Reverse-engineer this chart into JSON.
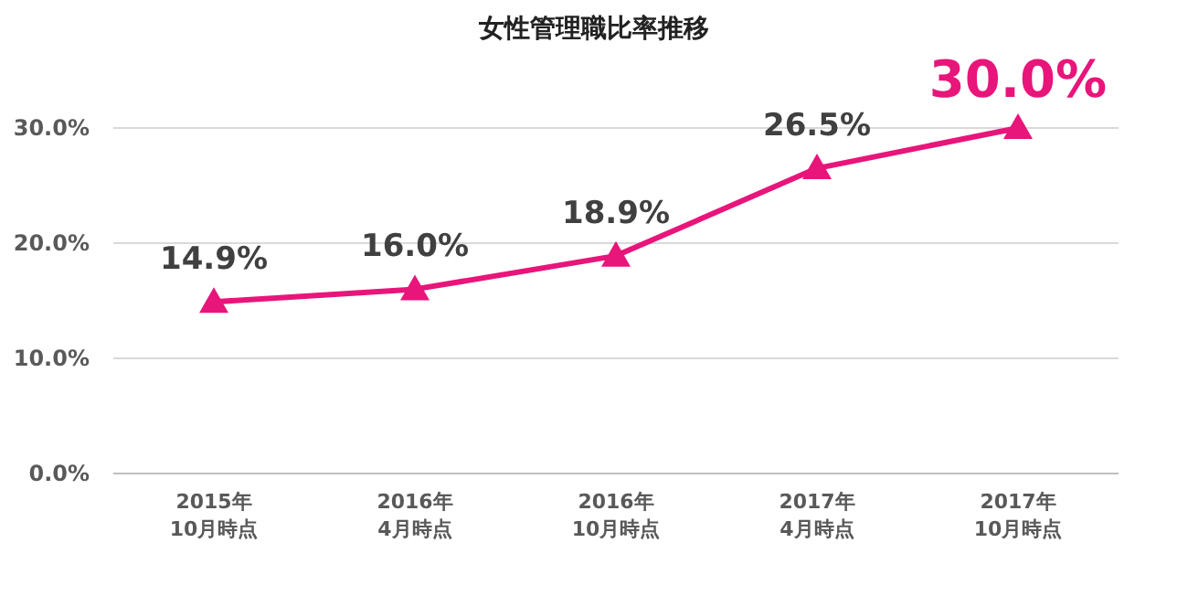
{
  "chart_data": {
    "type": "line",
    "title": "女性管理職比率推移",
    "categories": [
      "2015年\n10月時点",
      "2016年\n4月時点",
      "2016年\n10月時点",
      "2017年\n4月時点",
      "2017年\n10月時点"
    ],
    "values": [
      14.9,
      16.0,
      18.9,
      26.5,
      30.0
    ],
    "value_labels": [
      "14.9%",
      "16.0%",
      "18.9%",
      "26.5%",
      "30.0%"
    ],
    "color": "#e8157a",
    "marker": "triangle",
    "line_style": "solid",
    "grid": "y",
    "ylim": [
      0,
      30
    ],
    "yticks": [
      {
        "value": 0,
        "label": "0.0%"
      },
      {
        "value": 10,
        "label": "10.0%"
      },
      {
        "value": 20,
        "label": "20.0%"
      },
      {
        "value": 30,
        "label": "30.0%"
      }
    ]
  }
}
